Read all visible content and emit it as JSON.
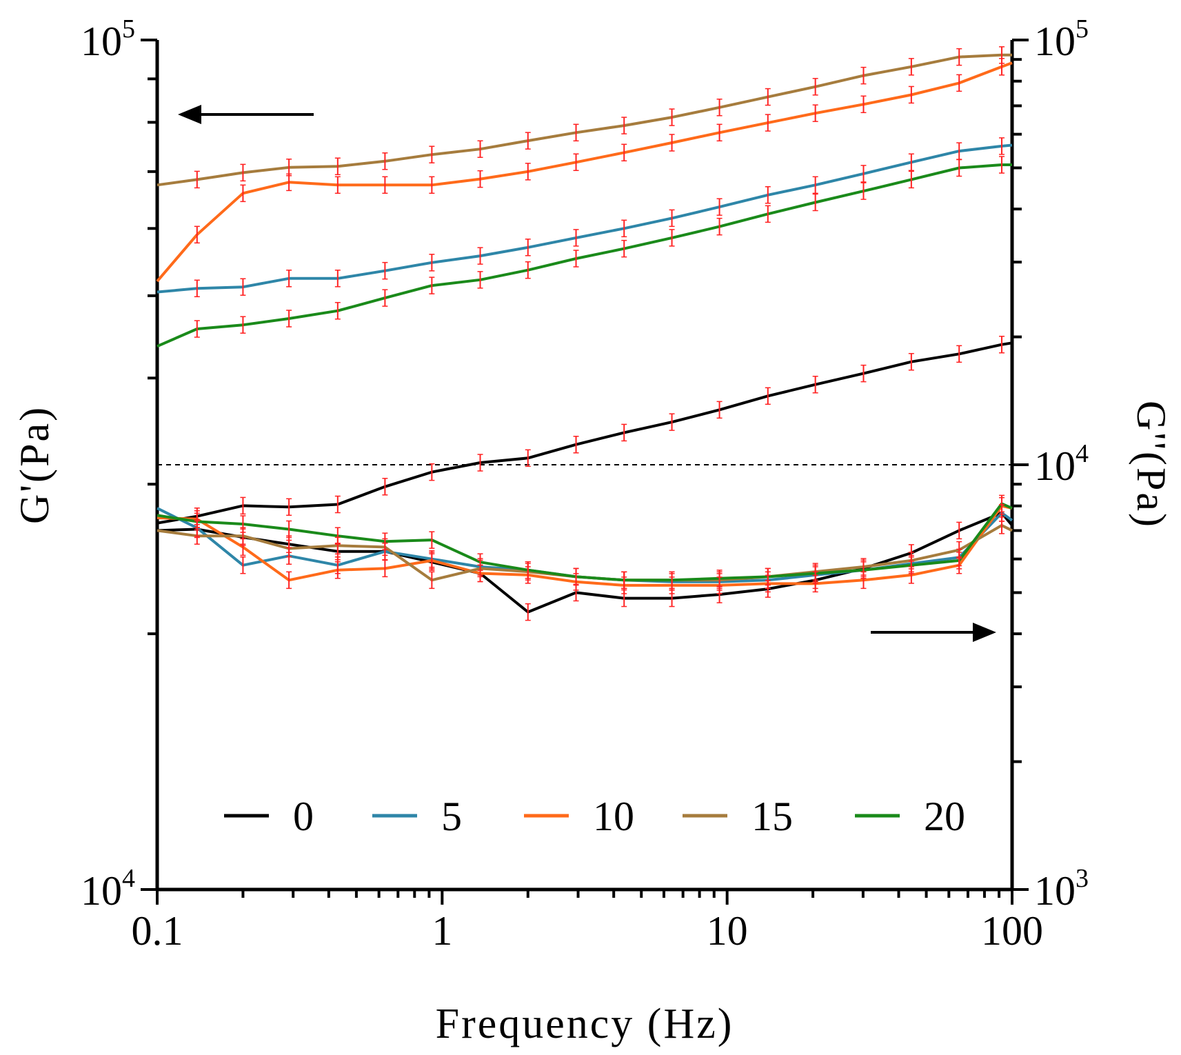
{
  "chart_data": {
    "type": "line",
    "x_scale": "log",
    "xlim": [
      0.1,
      100
    ],
    "x_ticks": [
      {
        "value": 0.1,
        "label": "0.1"
      },
      {
        "value": 1,
        "label": "1"
      },
      {
        "value": 10,
        "label": "10"
      },
      {
        "value": 100,
        "label": "100"
      }
    ],
    "xlabel": "Frequency (Hz)",
    "left_axis": {
      "label": "G'(Pa)",
      "scale": "log",
      "ylim": [
        10000,
        100000
      ],
      "ticks": [
        {
          "base": "10",
          "exp": "4",
          "value": 10000
        },
        {
          "base": "10",
          "exp": "5",
          "value": 100000
        }
      ]
    },
    "right_axis": {
      "label": "G''(Pa)",
      "scale": "log",
      "ylim": [
        1000,
        100000
      ],
      "ticks": [
        {
          "base": "10",
          "exp": "3",
          "value": 1000
        },
        {
          "base": "10",
          "exp": "4",
          "value": 10000
        },
        {
          "base": "10",
          "exp": "5",
          "value": 100000
        }
      ]
    },
    "reference_line": {
      "axis": "right",
      "value": 10000,
      "style": "dashed"
    },
    "annotations": [
      {
        "type": "arrow",
        "direction": "left",
        "meaning": "G' series use left axis"
      },
      {
        "type": "arrow",
        "direction": "right",
        "meaning": "G'' series use right axis"
      }
    ],
    "x": [
      0.1,
      0.138,
      0.2,
      0.29,
      0.43,
      0.63,
      0.92,
      1.36,
      2.0,
      2.95,
      4.35,
      6.4,
      9.4,
      13.9,
      20.4,
      30.1,
      44.3,
      65.2,
      92,
      100
    ],
    "series": [
      {
        "name": "0",
        "color": "#000000",
        "g_prime": [
          27000,
          27500,
          28300,
          28200,
          28400,
          29800,
          31000,
          31800,
          32200,
          33400,
          34500,
          35500,
          36700,
          38100,
          39300,
          40500,
          41800,
          42700,
          43800,
          44000
        ],
        "g_double_prime": [
          7000,
          7050,
          6750,
          6500,
          6250,
          6250,
          5900,
          5550,
          4500,
          5000,
          4850,
          4850,
          4950,
          5100,
          5350,
          5700,
          6200,
          7000,
          7700,
          7200
        ]
      },
      {
        "name": "5",
        "color": "#2E86A8",
        "g_prime": [
          50500,
          51000,
          51200,
          52400,
          52400,
          53500,
          54700,
          55700,
          57000,
          58500,
          60000,
          61700,
          63600,
          65700,
          67500,
          69600,
          71800,
          74000,
          75000,
          75200
        ],
        "g_double_prime": [
          7900,
          7100,
          5800,
          6100,
          5800,
          6250,
          6000,
          5750,
          5650,
          5450,
          5350,
          5300,
          5300,
          5350,
          5500,
          5650,
          5850,
          6050,
          7700,
          7400
        ]
      },
      {
        "name": "10",
        "color": "#FF6A1A",
        "g_prime": [
          52000,
          59000,
          66000,
          68000,
          67500,
          67500,
          67500,
          68600,
          70000,
          71800,
          73700,
          75700,
          77800,
          79900,
          82000,
          84000,
          86200,
          89000,
          93000,
          94000
        ],
        "g_double_prime": [
          7500,
          7450,
          6400,
          5350,
          5650,
          5700,
          5950,
          5550,
          5500,
          5300,
          5200,
          5200,
          5200,
          5250,
          5250,
          5350,
          5500,
          5800,
          8000,
          7900
        ]
      },
      {
        "name": "15",
        "color": "#A67C3D",
        "g_prime": [
          67500,
          68500,
          69800,
          70800,
          71000,
          72000,
          73300,
          74400,
          76100,
          77800,
          79300,
          81100,
          83300,
          85700,
          88100,
          90800,
          93000,
          95500,
          96000,
          96000
        ],
        "g_double_prime": [
          7000,
          6800,
          6800,
          6350,
          6450,
          6400,
          5350,
          5700,
          5600,
          5450,
          5350,
          5350,
          5350,
          5450,
          5600,
          5750,
          5950,
          6300,
          7200,
          7000
        ]
      },
      {
        "name": "20",
        "color": "#1A8A1A",
        "g_prime": [
          43600,
          45700,
          46200,
          47000,
          48000,
          49700,
          51400,
          52200,
          53600,
          55300,
          56800,
          58500,
          60300,
          62400,
          64400,
          66400,
          68500,
          70700,
          71300,
          71300
        ],
        "g_double_prime": [
          7600,
          7350,
          7250,
          7050,
          6800,
          6600,
          6650,
          5900,
          5650,
          5450,
          5350,
          5350,
          5400,
          5450,
          5550,
          5650,
          5800,
          5950,
          8100,
          7900
        ]
      }
    ],
    "error_bars": "small red vertical error bars on every data point of every series"
  }
}
